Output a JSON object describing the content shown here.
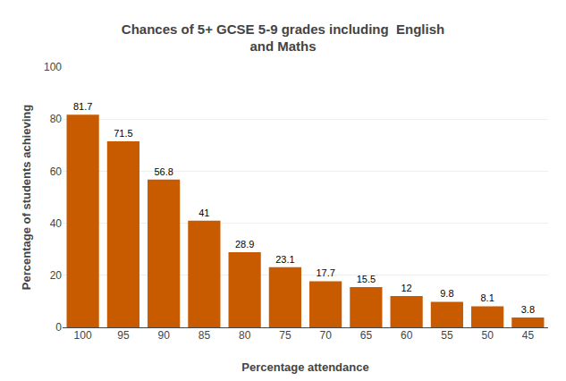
{
  "chart_data": {
    "type": "bar",
    "title": "Chances of 5+ GCSE 5-9 grades including  English\nand Maths",
    "xlabel": "Percentage attendance",
    "ylabel": "Percentage of students achieving",
    "categories": [
      "100",
      "95",
      "90",
      "85",
      "80",
      "75",
      "70",
      "65",
      "60",
      "55",
      "50",
      "45"
    ],
    "values": [
      81.7,
      71.5,
      56.8,
      41,
      28.9,
      23.1,
      17.7,
      15.5,
      12,
      9.8,
      8.1,
      3.8
    ],
    "color": "#C85A00",
    "ylim": [
      0,
      100
    ],
    "yticks": [
      0,
      20,
      40,
      60,
      80,
      100
    ],
    "grid": true,
    "data_labels": true
  }
}
